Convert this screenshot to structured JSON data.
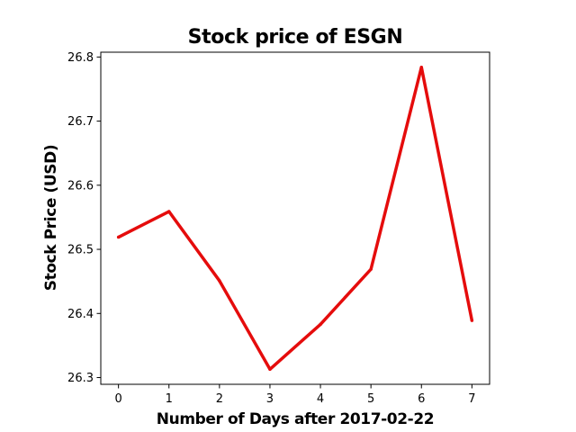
{
  "chart_data": {
    "type": "line",
    "title": "Stock price of ESGN",
    "xlabel": "Number of Days after 2017-02-22",
    "ylabel": "Stock Price (USD)",
    "x": [
      0,
      1,
      2,
      3,
      4,
      5,
      6,
      7
    ],
    "y": [
      26.519,
      26.559,
      26.451,
      26.313,
      26.383,
      26.469,
      26.784,
      26.389
    ],
    "xticks": [
      0,
      1,
      2,
      3,
      4,
      5,
      6,
      7
    ],
    "yticks": [
      "26.3",
      "26.4",
      "26.5",
      "26.6",
      "26.7",
      "26.8"
    ],
    "xlim": [
      -0.35,
      7.35
    ],
    "ylim": [
      26.2895,
      26.8075
    ],
    "grid": false,
    "legend": "none",
    "line_color": "#e50c0c"
  }
}
